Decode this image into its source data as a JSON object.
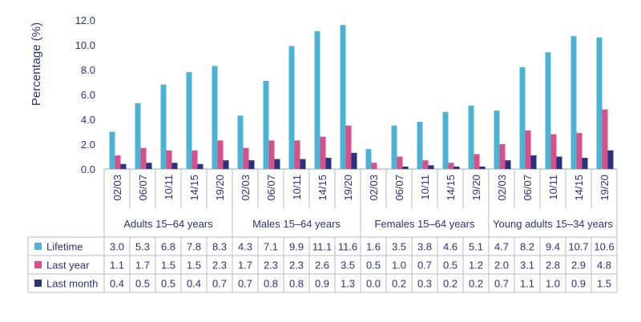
{
  "chart_data": {
    "type": "bar",
    "ylabel": "Percentage (%)",
    "ylim": [
      0,
      12
    ],
    "yticks": [
      "0.0",
      "2.0",
      "4.0",
      "6.0",
      "8.0",
      "10.0",
      "12.0"
    ],
    "grid": false,
    "groups": [
      {
        "label": "Adults 15–64 years",
        "periods": [
          "02/03",
          "06/07",
          "10/11",
          "14/15",
          "19/20"
        ]
      },
      {
        "label": "Males 15–64 years",
        "periods": [
          "02/03",
          "06/07",
          "10/11",
          "14/15",
          "19/20"
        ]
      },
      {
        "label": "Females 15–64 years",
        "periods": [
          "02/03",
          "06/07",
          "10/11",
          "14/15",
          "19/20"
        ]
      },
      {
        "label": "Young adults 15–34 years",
        "periods": [
          "02/03",
          "06/07",
          "10/11",
          "14/15",
          "19/20"
        ]
      }
    ],
    "series": [
      {
        "name": "Lifetime",
        "color": "#4db3d4",
        "values": [
          3.0,
          5.3,
          6.8,
          7.8,
          8.3,
          4.3,
          7.1,
          9.9,
          11.1,
          11.6,
          1.6,
          3.5,
          3.8,
          4.6,
          5.1,
          4.7,
          8.2,
          9.4,
          10.7,
          10.6
        ],
        "labels": [
          "3.0",
          "5.3",
          "6.8",
          "7.8",
          "8.3",
          "4.3",
          "7.1",
          "9.9",
          "11.1",
          "11.6",
          "1.6",
          "3.5",
          "3.8",
          "4.6",
          "5.1",
          "4.7",
          "8.2",
          "9.4",
          "10.7",
          "10.6"
        ]
      },
      {
        "name": "Last year",
        "color": "#d94f8a",
        "values": [
          1.1,
          1.7,
          1.5,
          1.5,
          2.3,
          1.7,
          2.3,
          2.3,
          2.6,
          3.5,
          0.5,
          1.0,
          0.7,
          0.5,
          1.2,
          2.0,
          3.1,
          2.8,
          2.9,
          4.8
        ],
        "labels": [
          "1.1",
          "1.7",
          "1.5",
          "1.5",
          "2.3",
          "1.7",
          "2.3",
          "2.3",
          "2.6",
          "3.5",
          "0.5",
          "1.0",
          "0.7",
          "0.5",
          "1.2",
          "2.0",
          "3.1",
          "2.8",
          "2.9",
          "4.8"
        ]
      },
      {
        "name": "Last month",
        "color": "#28337f",
        "values": [
          0.4,
          0.5,
          0.5,
          0.4,
          0.7,
          0.7,
          0.8,
          0.8,
          0.9,
          1.3,
          0.0,
          0.2,
          0.3,
          0.2,
          0.2,
          0.7,
          1.1,
          1.0,
          0.9,
          1.5
        ],
        "labels": [
          "0.4",
          "0.5",
          "0.5",
          "0.4",
          "0.7",
          "0.7",
          "0.8",
          "0.8",
          "0.9",
          "1.3",
          "0.0",
          "0.2",
          "0.3",
          "0.2",
          "0.2",
          "0.7",
          "1.1",
          "1.0",
          "0.9",
          "1.5"
        ]
      }
    ],
    "colors": {
      "text": "#2b3280",
      "axis": "#9aa4ae",
      "table_border": "#b6bec6"
    }
  }
}
